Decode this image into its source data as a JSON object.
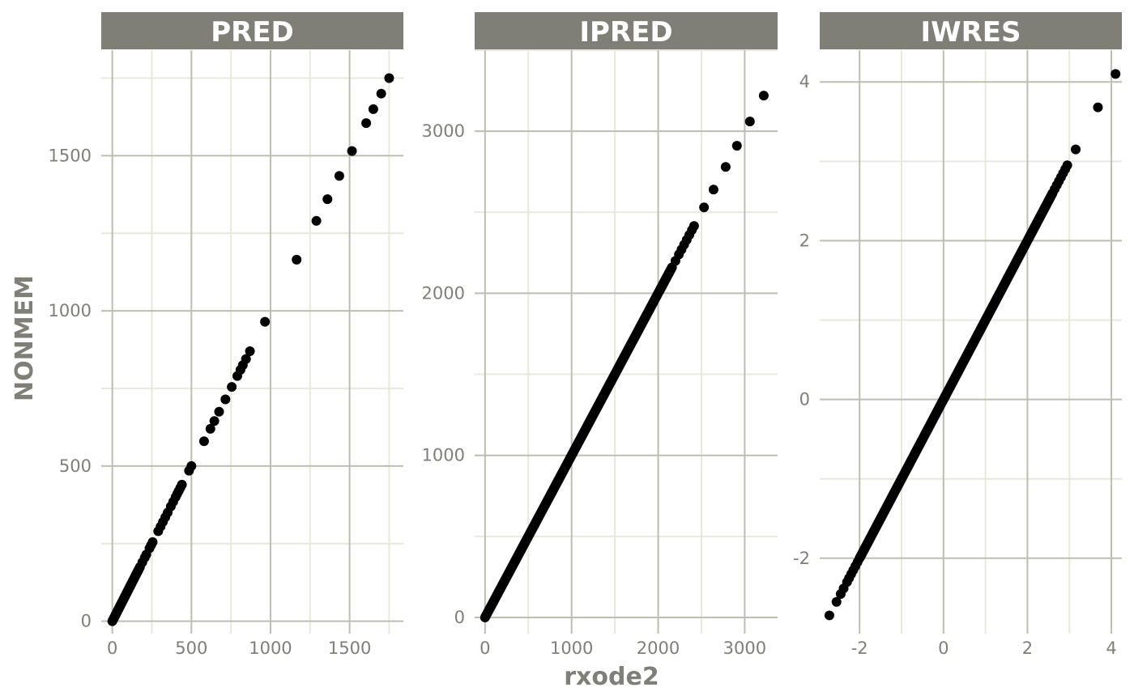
{
  "chart_data": {
    "type": "scatter",
    "xlabel": "rxode2",
    "ylabel": "NONMEM",
    "colors": {
      "strip_background": "#7f7f78",
      "strip_text": "#ffffff",
      "major_grid": "#bdbdb2",
      "minor_grid": "#e6e9dc",
      "point": "#000000",
      "axis_text": "#7f7f78"
    },
    "grid": true,
    "panels": [
      {
        "title": "PRED",
        "xlim": [
          -70,
          1840
        ],
        "ylim": [
          -40,
          1840
        ],
        "xticks": [
          0,
          500,
          1000,
          1500
        ],
        "xtick_labels": [
          "0",
          "500",
          "1000",
          "1500"
        ],
        "yticks": [
          0,
          500,
          1000,
          1500
        ],
        "ytick_labels": [
          "0",
          "500",
          "1000",
          "1500"
        ],
        "points": [
          [
            5,
            5
          ],
          [
            10,
            10
          ],
          [
            20,
            20
          ],
          [
            30,
            30
          ],
          [
            40,
            40
          ],
          [
            50,
            50
          ],
          [
            60,
            60
          ],
          [
            70,
            70
          ],
          [
            80,
            80
          ],
          [
            90,
            90
          ],
          [
            100,
            100
          ],
          [
            110,
            110
          ],
          [
            120,
            120
          ],
          [
            130,
            130
          ],
          [
            140,
            140
          ],
          [
            150,
            150
          ],
          [
            160,
            160
          ],
          [
            175,
            175
          ],
          [
            190,
            190
          ],
          [
            205,
            205
          ],
          [
            215,
            215
          ],
          [
            235,
            235
          ],
          [
            245,
            245
          ],
          [
            255,
            255
          ],
          [
            290,
            290
          ],
          [
            305,
            305
          ],
          [
            320,
            320
          ],
          [
            335,
            335
          ],
          [
            350,
            350
          ],
          [
            370,
            370
          ],
          [
            385,
            385
          ],
          [
            400,
            400
          ],
          [
            410,
            410
          ],
          [
            420,
            420
          ],
          [
            430,
            430
          ],
          [
            440,
            440
          ],
          [
            485,
            485
          ],
          [
            500,
            500
          ],
          [
            580,
            580
          ],
          [
            620,
            620
          ],
          [
            645,
            645
          ],
          [
            675,
            675
          ],
          [
            715,
            715
          ],
          [
            755,
            755
          ],
          [
            790,
            790
          ],
          [
            810,
            810
          ],
          [
            825,
            825
          ],
          [
            845,
            845
          ],
          [
            870,
            870
          ],
          [
            965,
            965
          ],
          [
            1165,
            1165
          ],
          [
            1290,
            1290
          ],
          [
            1360,
            1360
          ],
          [
            1435,
            1435
          ],
          [
            1515,
            1515
          ],
          [
            1605,
            1605
          ],
          [
            1650,
            1650
          ],
          [
            1700,
            1700
          ],
          [
            1750,
            1750
          ]
        ],
        "dense_segment": [
          0,
          170
        ]
      },
      {
        "title": "IPRED",
        "xlim": [
          -120,
          3380
        ],
        "ylim": [
          -100,
          3500
        ],
        "xticks": [
          0,
          1000,
          2000,
          3000
        ],
        "xtick_labels": [
          "0",
          "1000",
          "2000",
          "3000"
        ],
        "yticks": [
          0,
          1000,
          2000,
          3000
        ],
        "ytick_labels": [
          "0",
          "1000",
          "2000",
          "3000"
        ],
        "points": [
          [
            2160,
            2160
          ],
          [
            2200,
            2200
          ],
          [
            2240,
            2240
          ],
          [
            2270,
            2270
          ],
          [
            2300,
            2300
          ],
          [
            2330,
            2330
          ],
          [
            2360,
            2360
          ],
          [
            2390,
            2390
          ],
          [
            2415,
            2415
          ],
          [
            2530,
            2530
          ],
          [
            2640,
            2640
          ],
          [
            2780,
            2780
          ],
          [
            2910,
            2910
          ],
          [
            3060,
            3060
          ],
          [
            3220,
            3220
          ]
        ],
        "dense_segment": [
          0,
          2150
        ]
      },
      {
        "title": "IWRES",
        "xlim": [
          -2.95,
          4.25
        ],
        "ylim": [
          -2.95,
          4.4
        ],
        "xticks": [
          -2,
          0,
          2,
          4
        ],
        "xtick_labels": [
          "-2",
          "0",
          "2",
          "4"
        ],
        "yticks": [
          -2,
          0,
          2,
          4
        ],
        "ytick_labels": [
          "-2",
          "0",
          "2",
          "4"
        ],
        "points": [
          [
            -2.72,
            -2.72
          ],
          [
            -2.55,
            -2.55
          ],
          [
            -2.45,
            -2.45
          ],
          [
            -2.38,
            -2.38
          ],
          [
            -2.3,
            -2.3
          ],
          [
            -2.25,
            -2.25
          ],
          [
            -2.2,
            -2.2
          ],
          [
            -2.15,
            -2.15
          ],
          [
            -2.1,
            -2.1
          ],
          [
            -2.05,
            -2.05
          ],
          [
            2.65,
            2.65
          ],
          [
            2.7,
            2.7
          ],
          [
            2.75,
            2.75
          ],
          [
            2.8,
            2.8
          ],
          [
            2.85,
            2.85
          ],
          [
            2.9,
            2.9
          ],
          [
            2.95,
            2.95
          ],
          [
            3.15,
            3.15
          ],
          [
            3.68,
            3.68
          ],
          [
            4.1,
            4.1
          ]
        ],
        "dense_segment": [
          -2.0,
          2.6
        ]
      }
    ]
  }
}
